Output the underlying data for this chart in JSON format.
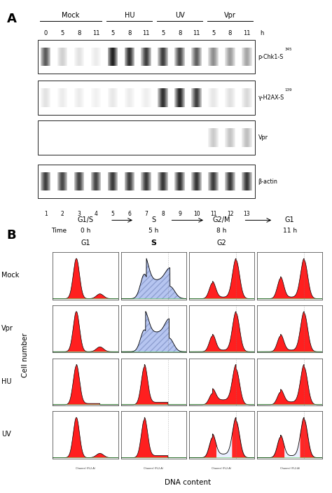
{
  "panel_a": {
    "groups": [
      "Mock",
      "HU",
      "UV",
      "Vpr"
    ],
    "group_starts": [
      0,
      4,
      7,
      10
    ],
    "group_ends": [
      3,
      6,
      9,
      12
    ],
    "time_all": [
      "0",
      "5",
      "8",
      "11",
      "5",
      "8",
      "11",
      "5",
      "8",
      "11",
      "5",
      "8",
      "11"
    ],
    "lane_numbers": [
      "1",
      "2",
      "3",
      "4",
      "5",
      "6",
      "7",
      "8",
      "9",
      "10",
      "11",
      "12",
      "13"
    ],
    "blots": [
      {
        "label": "p-Chk1-S",
        "superscript": "345",
        "intensities": [
          0.7,
          0.2,
          0.12,
          0.08,
          0.95,
          0.88,
          0.82,
          0.82,
          0.78,
          0.68,
          0.48,
          0.42,
          0.38
        ]
      },
      {
        "label": "γ-H2AX-S",
        "superscript": "139",
        "intensities": [
          0.12,
          0.08,
          0.08,
          0.06,
          0.1,
          0.08,
          0.07,
          0.88,
          0.92,
          0.82,
          0.1,
          0.13,
          0.16
        ]
      },
      {
        "label": "Vpr",
        "superscript": "",
        "intensities": [
          0.0,
          0.0,
          0.0,
          0.0,
          0.0,
          0.0,
          0.0,
          0.0,
          0.0,
          0.0,
          0.22,
          0.25,
          0.27
        ]
      },
      {
        "label": "β-actin",
        "superscript": "",
        "intensities": [
          0.82,
          0.78,
          0.8,
          0.79,
          0.84,
          0.82,
          0.84,
          0.85,
          0.87,
          0.86,
          0.83,
          0.84,
          0.85
        ]
      }
    ]
  },
  "panel_b": {
    "rows": [
      "Mock",
      "Vpr",
      "HU",
      "UV"
    ],
    "cols": [
      "0 h",
      "5 h",
      "8 h",
      "11 h"
    ],
    "phase_labels": [
      "G1/S",
      "S",
      "G2/M",
      "G1"
    ],
    "cell_labels": [
      "G1",
      "S",
      "G2",
      ""
    ],
    "time_label": "Time",
    "ylabel": "Cell number",
    "xlabel": "DNA content"
  },
  "colors": {
    "red_fill": "#FF0000",
    "hatch_fill": "#aabbee",
    "hatch_edge": "#8899cc",
    "green_line": "#00aa00",
    "outline_only": "#000000"
  }
}
